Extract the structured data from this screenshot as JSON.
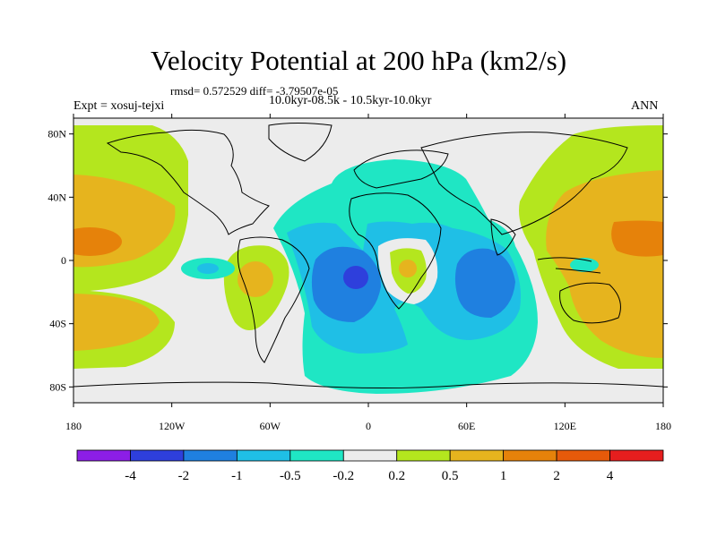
{
  "title": "Velocity Potential at 200 hPa (km2/s)",
  "stats": "rmsd= 0.572529 diff= -3.79507e-05",
  "expt": "Expt = xosuj-tejxi",
  "period": "10.0kyr-08.5k - 10.5kyr-10.0kyr",
  "season": "ANN",
  "lat_labels": [
    "80N",
    "40N",
    "0",
    "40S",
    "80S"
  ],
  "lon_labels": [
    "180",
    "120W",
    "60W",
    "0",
    "60E",
    "120E",
    "180"
  ],
  "colorbar": {
    "colors": [
      "#8c1ee6",
      "#2e3fdc",
      "#1f80e0",
      "#1fbfe6",
      "#1fe6c4",
      "#ececec",
      "#b4e61e",
      "#e6b41e",
      "#e6820a",
      "#e65a0a",
      "#e61e1e"
    ],
    "labels": [
      "-4",
      "-2",
      "-1",
      "-0.5",
      "-0.2",
      "0.2",
      "0.5",
      "1",
      "2",
      "4"
    ]
  }
}
